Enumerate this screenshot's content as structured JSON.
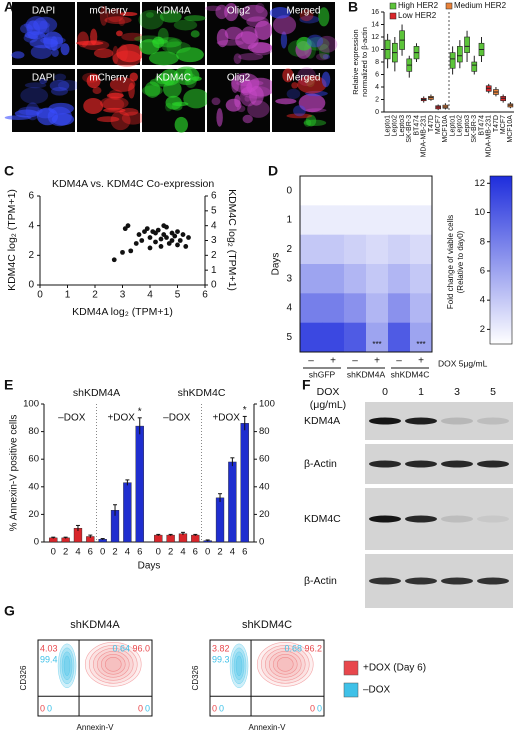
{
  "panel_labels": [
    "A",
    "B",
    "C",
    "D",
    "E",
    "F",
    "G"
  ],
  "microscopy": {
    "rows": [
      [
        "DAPI",
        "mCherry",
        "KDM4A",
        "Olig2",
        "Merged"
      ],
      [
        "DAPI",
        "mCherry",
        "KDM4C",
        "Olig2",
        "Merged"
      ]
    ]
  },
  "chart_data": [
    {
      "type": "box",
      "y_label": [
        "Relative expression",
        "normalized to β-actin"
      ],
      "categories": [
        "Lepto1",
        "Lepto2",
        "Lepto3",
        "SK-BR-3",
        "BT474",
        "MDA-MB-231",
        "T47D",
        "MCF7",
        "MCF10A",
        "Lepto1",
        "Lepto2",
        "Lepto3",
        "SK-BR-3",
        "BT474",
        "MDA-MB-231",
        "T47D",
        "MCF7",
        "MCF10A"
      ],
      "ylim": [
        0,
        16
      ],
      "yticks": [
        0,
        2,
        4,
        6,
        8,
        10,
        12,
        14,
        16
      ],
      "series": [
        {
          "name": "High HER2",
          "color": "#5cc43a",
          "values": [
            [
              7,
              8.5,
              10,
              11.5,
              12.5
            ],
            [
              6.5,
              8,
              9.5,
              11,
              12
            ],
            [
              9,
              10,
              11.5,
              13,
              14
            ],
            [
              5.5,
              6.5,
              7.5,
              8.5,
              9
            ],
            [
              8,
              8.5,
              9.5,
              10.5,
              11
            ],
            null,
            null,
            null,
            null,
            [
              6,
              7,
              8.5,
              9.5,
              10.5
            ],
            [
              7,
              8,
              9,
              10.5,
              11.5
            ],
            [
              8,
              9.5,
              10.5,
              12,
              13
            ],
            [
              6,
              6.5,
              7.5,
              8,
              9
            ],
            [
              8,
              9,
              10,
              11,
              12
            ],
            null,
            null,
            null,
            null
          ]
        },
        {
          "name": "Low HER2",
          "color": "#d9262b",
          "values": [
            null,
            null,
            null,
            null,
            null,
            [
              1.5,
              1.8,
              2,
              2.2,
              2.5
            ],
            null,
            [
              0.3,
              0.5,
              0.8,
              1,
              1.2
            ],
            null,
            null,
            null,
            null,
            null,
            null,
            [
              3,
              3.3,
              3.8,
              4.2,
              4.5
            ],
            null,
            [
              1.5,
              1.8,
              2.2,
              2.5,
              2.8
            ],
            null
          ]
        },
        {
          "name": "Medium HER2",
          "color": "#e8823a",
          "values": [
            null,
            null,
            null,
            null,
            null,
            null,
            [
              1.8,
              2,
              2.3,
              2.5,
              2.8
            ],
            null,
            [
              0.4,
              0.6,
              0.8,
              1.1,
              1.4
            ],
            null,
            null,
            null,
            null,
            null,
            null,
            [
              2.5,
              2.8,
              3.2,
              3.6,
              4
            ],
            null,
            [
              0.6,
              0.8,
              1.1,
              1.3,
              1.6
            ]
          ]
        }
      ]
    },
    {
      "type": "scatter",
      "title": "KDM4A vs. KDM4C Co-expression",
      "x_label": "KDM4A log₂ (TPM+1)",
      "y_label": "KDM4C log₂ (TPM+1)",
      "y2_label": "KDM4C log₂ (TPM+1)",
      "xlim": [
        0,
        6
      ],
      "xticks": [
        0,
        1,
        2,
        3,
        4,
        5,
        6
      ],
      "ylim": [
        0,
        6
      ],
      "yticks": [
        0,
        2,
        4,
        6
      ],
      "y2lim": [
        0,
        6
      ],
      "y2ticks": [
        0,
        1,
        2,
        3,
        4,
        5,
        6
      ],
      "color": "#111111",
      "x": [
        2.7,
        3.0,
        3.2,
        3.3,
        3.5,
        3.6,
        3.7,
        3.8,
        3.9,
        4.0,
        4.0,
        4.1,
        4.2,
        4.2,
        4.3,
        4.4,
        4.4,
        4.5,
        4.5,
        4.6,
        4.7,
        4.8,
        4.8,
        4.9,
        5.0,
        5.0,
        5.1,
        5.2,
        5.3,
        3.1,
        4.6,
        5.4
      ],
      "values": [
        1.7,
        2.2,
        4.0,
        2.3,
        2.8,
        3.4,
        3.0,
        3.6,
        3.8,
        2.5,
        3.2,
        3.6,
        2.9,
        3.5,
        3.7,
        3.1,
        2.6,
        3.4,
        4.0,
        3.2,
        2.8,
        3.5,
        3.0,
        3.3,
        2.7,
        3.6,
        3.0,
        3.4,
        2.6,
        3.8,
        3.9,
        3.2
      ]
    },
    {
      "type": "heatmap",
      "y_label": "Days",
      "rows": [
        "0",
        "1",
        "2",
        "3",
        "4",
        "5"
      ],
      "columns": [
        "–",
        "+",
        "–",
        "+",
        "–",
        "+"
      ],
      "groups": [
        "shGFP",
        "shKDM4A",
        "shKDM4C"
      ],
      "treatment_label": "DOX 5μg/mL",
      "values": [
        [
          1,
          1,
          1,
          1,
          1,
          1
        ],
        [
          2,
          2,
          2,
          2,
          2,
          2
        ],
        [
          4,
          4,
          3.5,
          3,
          3.5,
          3
        ],
        [
          6,
          6,
          5,
          4,
          5,
          4
        ],
        [
          8,
          8,
          7,
          5,
          7,
          5
        ],
        [
          11,
          11,
          10,
          6,
          10,
          6
        ]
      ],
      "cell_labels": [
        [
          null,
          null,
          null,
          null,
          null,
          null
        ],
        [
          null,
          null,
          null,
          null,
          null,
          null
        ],
        [
          null,
          null,
          null,
          null,
          null,
          null
        ],
        [
          null,
          null,
          null,
          null,
          null,
          null
        ],
        [
          null,
          null,
          null,
          null,
          null,
          null
        ],
        [
          null,
          null,
          null,
          "***",
          null,
          "***"
        ]
      ],
      "color_low": "#ffffff",
      "color_high": "#1e2ddc",
      "clim": [
        1,
        12.5
      ],
      "cticks": [
        2,
        4,
        6,
        8,
        10,
        12
      ],
      "colorbar_label": [
        "Fold change of viable cells",
        "(Relative to day0)"
      ]
    },
    {
      "type": "bar",
      "panels": [
        "shKDM4A",
        "shKDM4C"
      ],
      "categories": [
        "0",
        "2",
        "4",
        "6"
      ],
      "y_label": "% Annexin-V positive cells",
      "x_label": "Days",
      "ylim": [
        0,
        100
      ],
      "yticks": [
        0,
        20,
        40,
        60,
        80,
        100
      ],
      "y2lim": [
        0,
        100
      ],
      "y2ticks": [
        0,
        20,
        40,
        60,
        80,
        100
      ],
      "series": [
        {
          "name": "–DOX",
          "color": "#d9262b",
          "values": [
            [
              3,
              3,
              10,
              4
            ],
            [
              5,
              5,
              6,
              5
            ]
          ],
          "errors": [
            [
              0.5,
              0.5,
              2,
              1
            ],
            [
              0.5,
              0.5,
              1,
              0.5
            ]
          ],
          "annotations": [
            [
              null,
              null,
              null,
              null
            ],
            [
              null,
              null,
              null,
              null
            ]
          ]
        },
        {
          "name": "+DOX",
          "color": "#1f2ecf",
          "values": [
            [
              2,
              23,
              43,
              84
            ],
            [
              1,
              32,
              58,
              86
            ]
          ],
          "errors": [
            [
              0.5,
              4,
              2,
              6
            ],
            [
              0.5,
              3,
              3,
              5
            ]
          ],
          "annotations": [
            [
              null,
              null,
              null,
              "*"
            ],
            [
              null,
              null,
              null,
              "*"
            ]
          ]
        }
      ]
    }
  ],
  "western_blot": {
    "dox_label": [
      "DOX",
      "(μg/mL)"
    ],
    "doses": [
      "0",
      "1",
      "3",
      "5"
    ],
    "bands": [
      "KDM4A",
      "β-Actin",
      "KDM4C",
      "β-Actin"
    ]
  },
  "flow": {
    "panels": [
      {
        "title": "shKDM4A",
        "y_label": "CD326",
        "x_label": "Annexin-V",
        "upper_left": [
          "4.03",
          "99.4"
        ],
        "upper_right": [
          "96.0",
          "0.64"
        ],
        "lower_left": [
          "0",
          "0"
        ],
        "lower_right": [
          "0",
          "0"
        ]
      },
      {
        "title": "shKDM4C",
        "y_label": "CD326",
        "x_label": "Annexin-V",
        "upper_left": [
          "3.82",
          "99.3"
        ],
        "upper_right": [
          "96.2",
          "0.68"
        ],
        "lower_left": [
          "0",
          "0"
        ],
        "lower_right": [
          "0",
          "0"
        ]
      }
    ],
    "legend": [
      {
        "name": "+DOX (Day 6)",
        "color": "#e8474c"
      },
      {
        "name": "–DOX",
        "color": "#3fc1e8"
      }
    ]
  }
}
